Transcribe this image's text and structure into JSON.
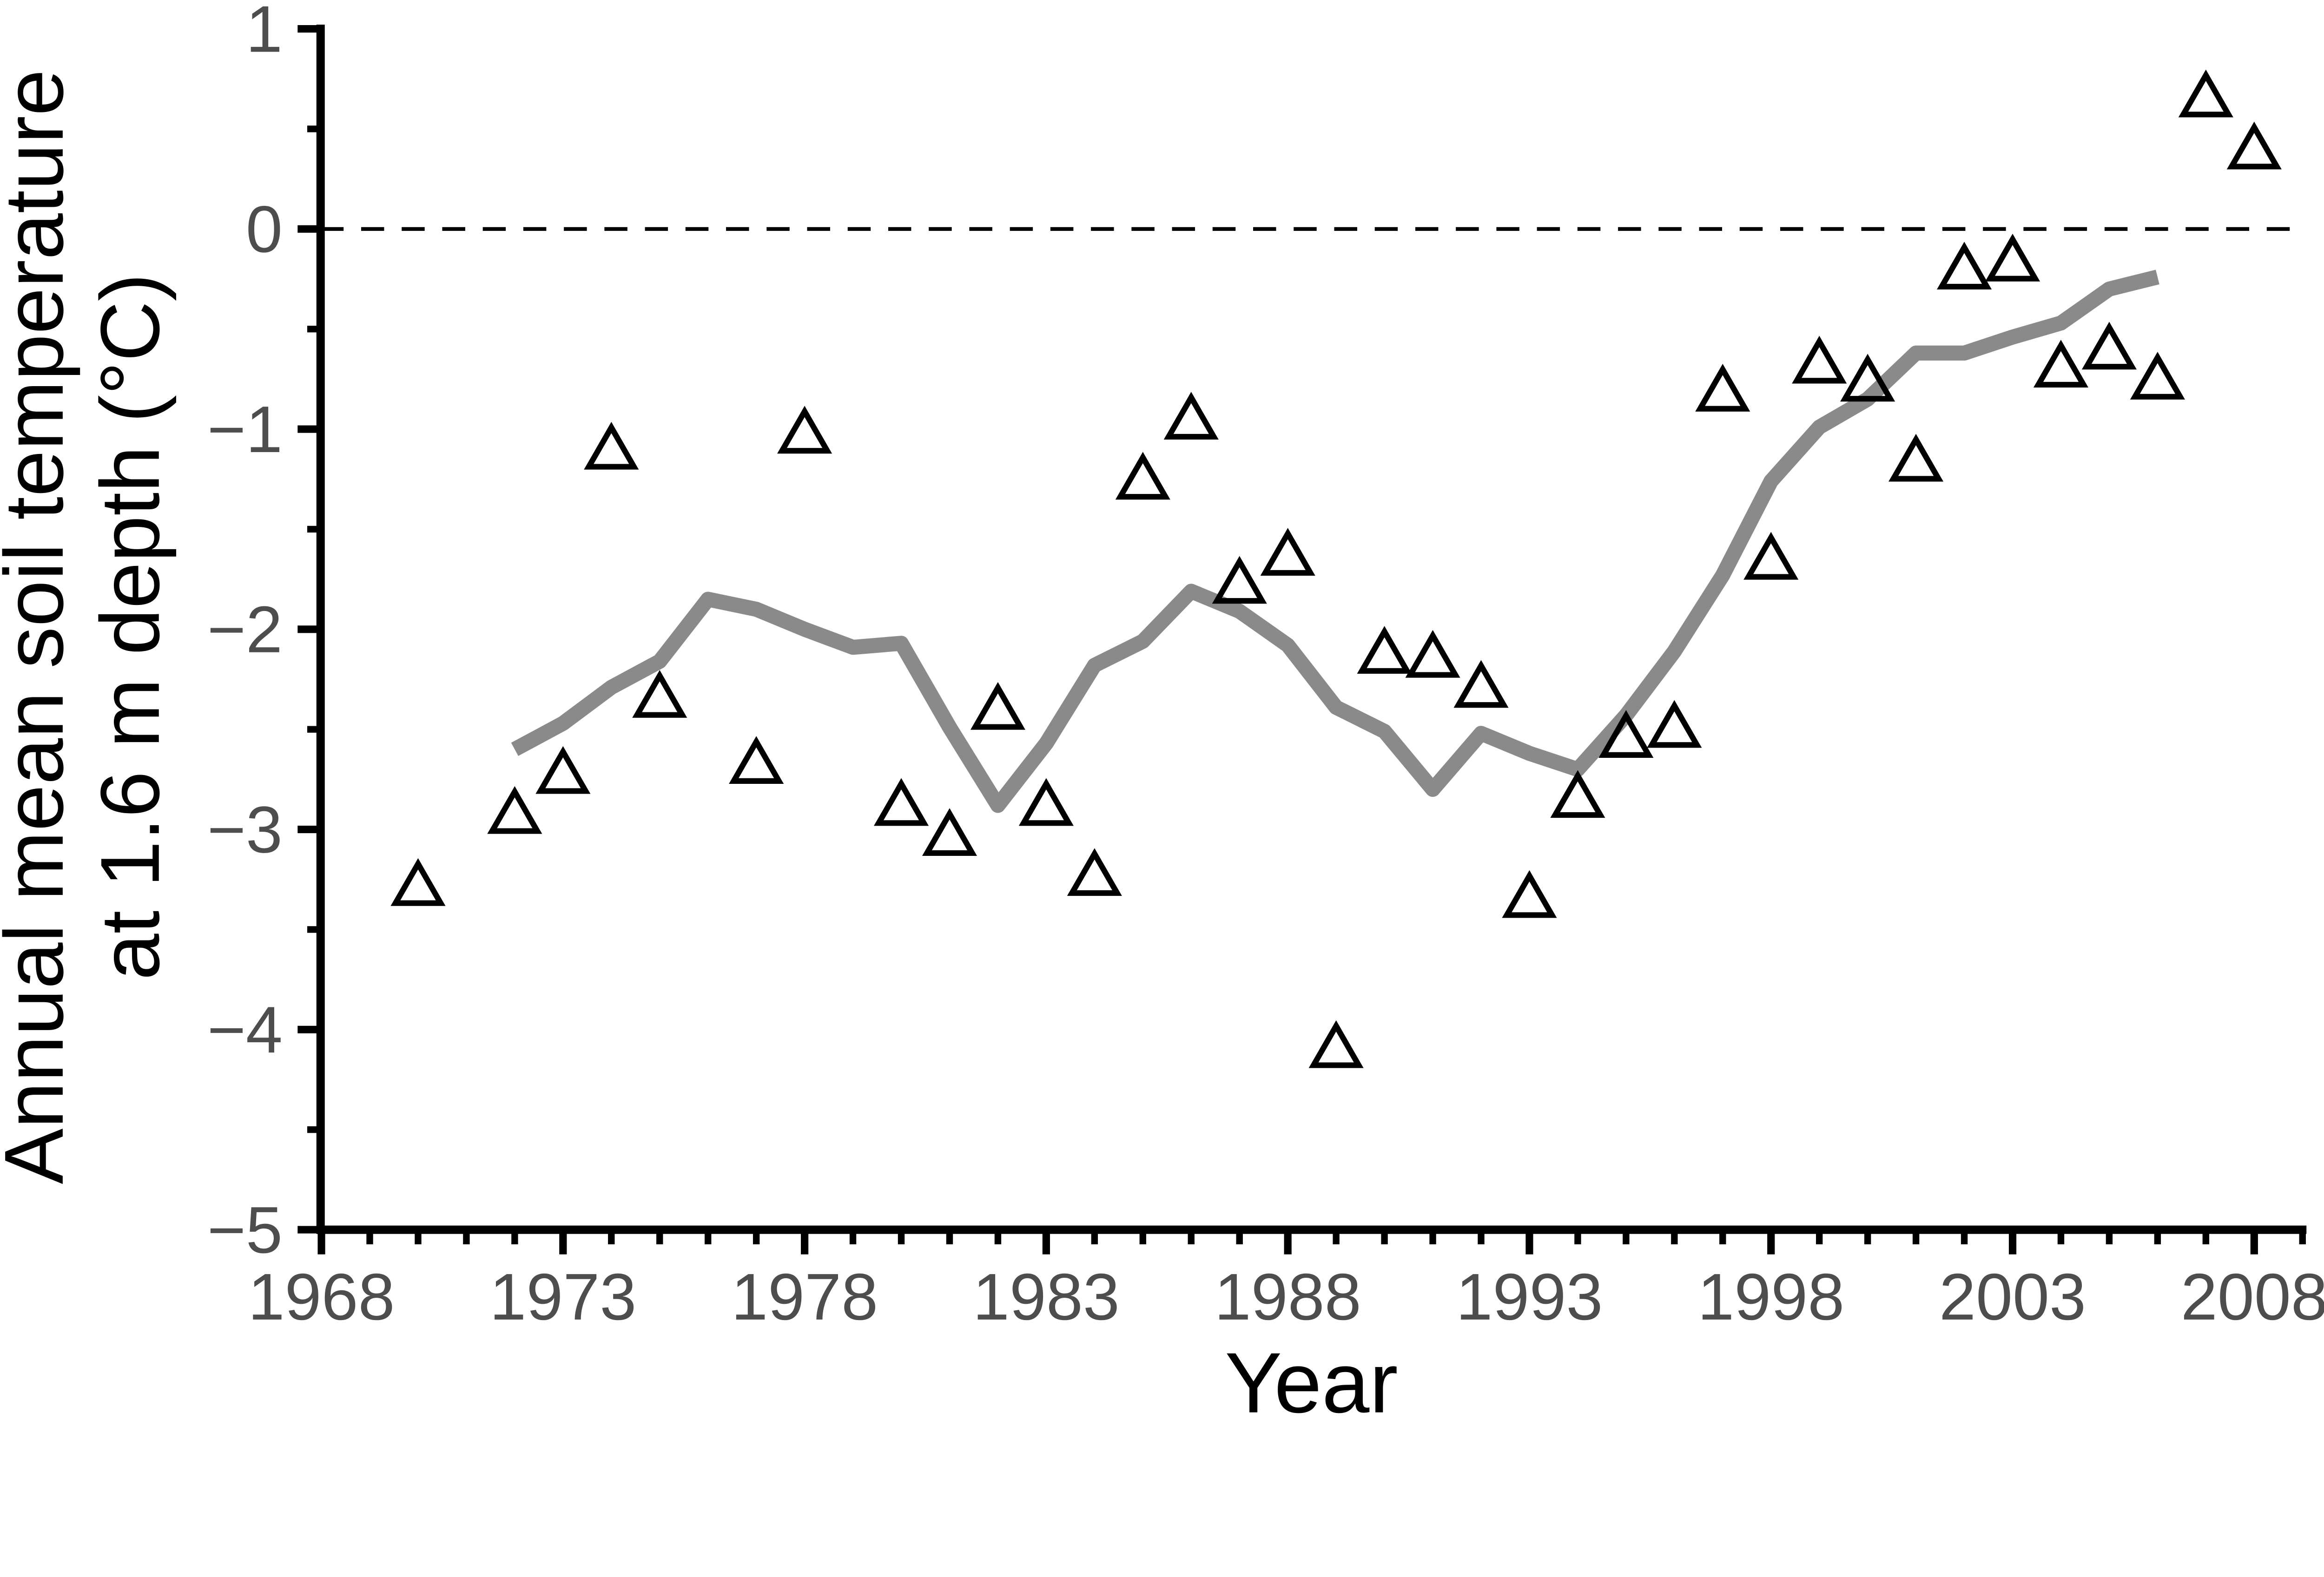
{
  "chart_data": {
    "type": "scatter",
    "title": "",
    "xlabel": "Year",
    "ylabel": "Annual mean soil temperature at 1.6 m depth (°C)",
    "ylabel_lines": [
      "Annual mean soil temperature",
      "at 1.6 m depth (°C)"
    ],
    "xlim": [
      1968,
      2009.3
    ],
    "ylim": [
      -5,
      1
    ],
    "grid": false,
    "legend": null,
    "zero_reference_line": {
      "y": 0,
      "style": "dashed",
      "color": "#000000"
    },
    "x_axis": {
      "major_ticks": [
        1968,
        1973,
        1978,
        1983,
        1988,
        1993,
        1998,
        2003,
        2008
      ],
      "major_tick_labels": [
        "1968",
        "1973",
        "1978",
        "1983",
        "1988",
        "1993",
        "1998",
        "2003",
        "2008"
      ],
      "minor_ticks": [
        1969,
        1970,
        1971,
        1972,
        1974,
        1975,
        1976,
        1977,
        1979,
        1980,
        1981,
        1982,
        1984,
        1985,
        1986,
        1987,
        1989,
        1990,
        1991,
        1992,
        1994,
        1995,
        1996,
        1997,
        1999,
        2000,
        2001,
        2002,
        2004,
        2005,
        2006,
        2007,
        2009
      ]
    },
    "y_axis": {
      "major_ticks": [
        1,
        0,
        -1,
        -2,
        -3,
        -4,
        -5
      ],
      "major_tick_labels": [
        "1",
        "0",
        "−1",
        "−2",
        "−3",
        "−4",
        "−5"
      ],
      "minor_ticks": [
        0.5,
        -0.5,
        -1.5,
        -2.5,
        -3.5,
        -4.5
      ]
    },
    "series": [
      {
        "name": "annual_mean_observations",
        "type": "scatter",
        "marker": "open-triangle-up",
        "color": "#000000",
        "points": [
          [
            1970,
            -3.27
          ],
          [
            1972,
            -2.91
          ],
          [
            1973,
            -2.71
          ],
          [
            1974,
            -1.09
          ],
          [
            1975,
            -2.33
          ],
          [
            1977,
            -2.66
          ],
          [
            1978,
            -1.01
          ],
          [
            1980,
            -2.87
          ],
          [
            1981,
            -3.02
          ],
          [
            1982,
            -2.39
          ],
          [
            1983,
            -2.87
          ],
          [
            1984,
            -3.22
          ],
          [
            1985,
            -1.24
          ],
          [
            1986,
            -0.94
          ],
          [
            1987,
            -1.76
          ],
          [
            1988,
            -1.62
          ],
          [
            1989,
            -4.08
          ],
          [
            1990,
            -2.11
          ],
          [
            1991,
            -2.13
          ],
          [
            1992,
            -2.28
          ],
          [
            1993,
            -3.33
          ],
          [
            1994,
            -2.83
          ],
          [
            1995,
            -2.53
          ],
          [
            1996,
            -2.48
          ],
          [
            1997,
            -0.8
          ],
          [
            1998,
            -1.64
          ],
          [
            1999,
            -0.66
          ],
          [
            2000,
            -0.75
          ],
          [
            2001,
            -1.15
          ],
          [
            2002,
            -0.19
          ],
          [
            2003,
            -0.15
          ],
          [
            2004,
            -0.68
          ],
          [
            2005,
            -0.59
          ],
          [
            2006,
            -0.74
          ],
          [
            2007,
            0.67
          ],
          [
            2008,
            0.41
          ]
        ]
      },
      {
        "name": "loess_smoothed_trend",
        "type": "line",
        "color": "#8a8a8a",
        "points": [
          [
            1972,
            -2.6
          ],
          [
            1973,
            -2.47
          ],
          [
            1974,
            -2.29
          ],
          [
            1975,
            -2.16
          ],
          [
            1976,
            -1.85
          ],
          [
            1977,
            -1.9
          ],
          [
            1978,
            -2.0
          ],
          [
            1979,
            -2.09
          ],
          [
            1980,
            -2.07
          ],
          [
            1981,
            -2.49
          ],
          [
            1982,
            -2.88
          ],
          [
            1983,
            -2.57
          ],
          [
            1984,
            -2.18
          ],
          [
            1985,
            -2.06
          ],
          [
            1986,
            -1.81
          ],
          [
            1987,
            -1.91
          ],
          [
            1988,
            -2.08
          ],
          [
            1989,
            -2.39
          ],
          [
            1990,
            -2.51
          ],
          [
            1991,
            -2.8
          ],
          [
            1992,
            -2.52
          ],
          [
            1993,
            -2.62
          ],
          [
            1994,
            -2.7
          ],
          [
            1995,
            -2.43
          ],
          [
            1996,
            -2.11
          ],
          [
            1997,
            -1.73
          ],
          [
            1998,
            -1.26
          ],
          [
            1999,
            -0.99
          ],
          [
            2000,
            -0.85
          ],
          [
            2001,
            -0.62
          ],
          [
            2002,
            -0.62
          ],
          [
            2003,
            -0.54
          ],
          [
            2004,
            -0.47
          ],
          [
            2005,
            -0.3
          ],
          [
            2006,
            -0.24
          ]
        ]
      }
    ],
    "colors": {
      "background": "#ffffff",
      "axis": "#000000",
      "tick_labels": "#4d4d4d",
      "loess_line": "#8a8a8a",
      "marker_outline": "#000000"
    }
  }
}
